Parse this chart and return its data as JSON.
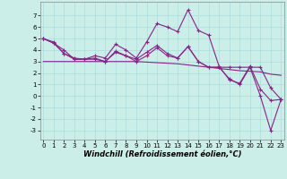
{
  "xlabel": "Windchill (Refroidissement éolien,°C)",
  "bg_color": "#cceee8",
  "line_color": "#882288",
  "grid_color": "#aadddd",
  "x_values": [
    0,
    1,
    2,
    3,
    4,
    5,
    6,
    7,
    8,
    9,
    10,
    11,
    12,
    13,
    14,
    15,
    16,
    17,
    18,
    19,
    20,
    21,
    22,
    23
  ],
  "y_main": [
    5.0,
    4.7,
    3.7,
    3.3,
    3.2,
    3.5,
    3.3,
    4.5,
    4.0,
    3.3,
    4.7,
    6.3,
    6.0,
    5.6,
    7.5,
    5.7,
    5.3,
    2.6,
    1.4,
    1.1,
    2.6,
    0.6,
    -0.4,
    -0.3
  ],
  "y_line1": [
    5.0,
    4.6,
    3.7,
    3.2,
    3.2,
    3.3,
    3.0,
    3.9,
    3.5,
    3.2,
    3.8,
    4.4,
    3.7,
    3.3,
    4.3,
    3.0,
    2.5,
    2.5,
    2.5,
    2.5,
    2.5,
    2.5,
    0.7,
    -0.3
  ],
  "y_line2": [
    3.0,
    3.0,
    3.0,
    3.0,
    3.0,
    3.0,
    3.0,
    3.0,
    3.0,
    3.0,
    2.95,
    2.9,
    2.85,
    2.8,
    2.7,
    2.6,
    2.5,
    2.4,
    2.3,
    2.2,
    2.15,
    2.1,
    1.9,
    1.8
  ],
  "y_line3": [
    5.0,
    4.6,
    4.0,
    3.2,
    3.2,
    3.2,
    3.0,
    3.8,
    3.5,
    3.0,
    3.5,
    4.2,
    3.5,
    3.3,
    4.3,
    3.0,
    2.5,
    2.5,
    1.5,
    1.0,
    2.5,
    0.0,
    -3.0,
    -0.3
  ],
  "ylim": [
    -3.8,
    8.2
  ],
  "xlim": [
    -0.3,
    23.3
  ],
  "yticks": [
    -3,
    -2,
    -1,
    0,
    1,
    2,
    3,
    4,
    5,
    6,
    7
  ],
  "xticks": [
    0,
    1,
    2,
    3,
    4,
    5,
    6,
    7,
    8,
    9,
    10,
    11,
    12,
    13,
    14,
    15,
    16,
    17,
    18,
    19,
    20,
    21,
    22,
    23
  ],
  "tick_fontsize": 5.0,
  "label_fontsize": 6.0,
  "marker": "+",
  "lw": 0.8,
  "ms": 3.0
}
